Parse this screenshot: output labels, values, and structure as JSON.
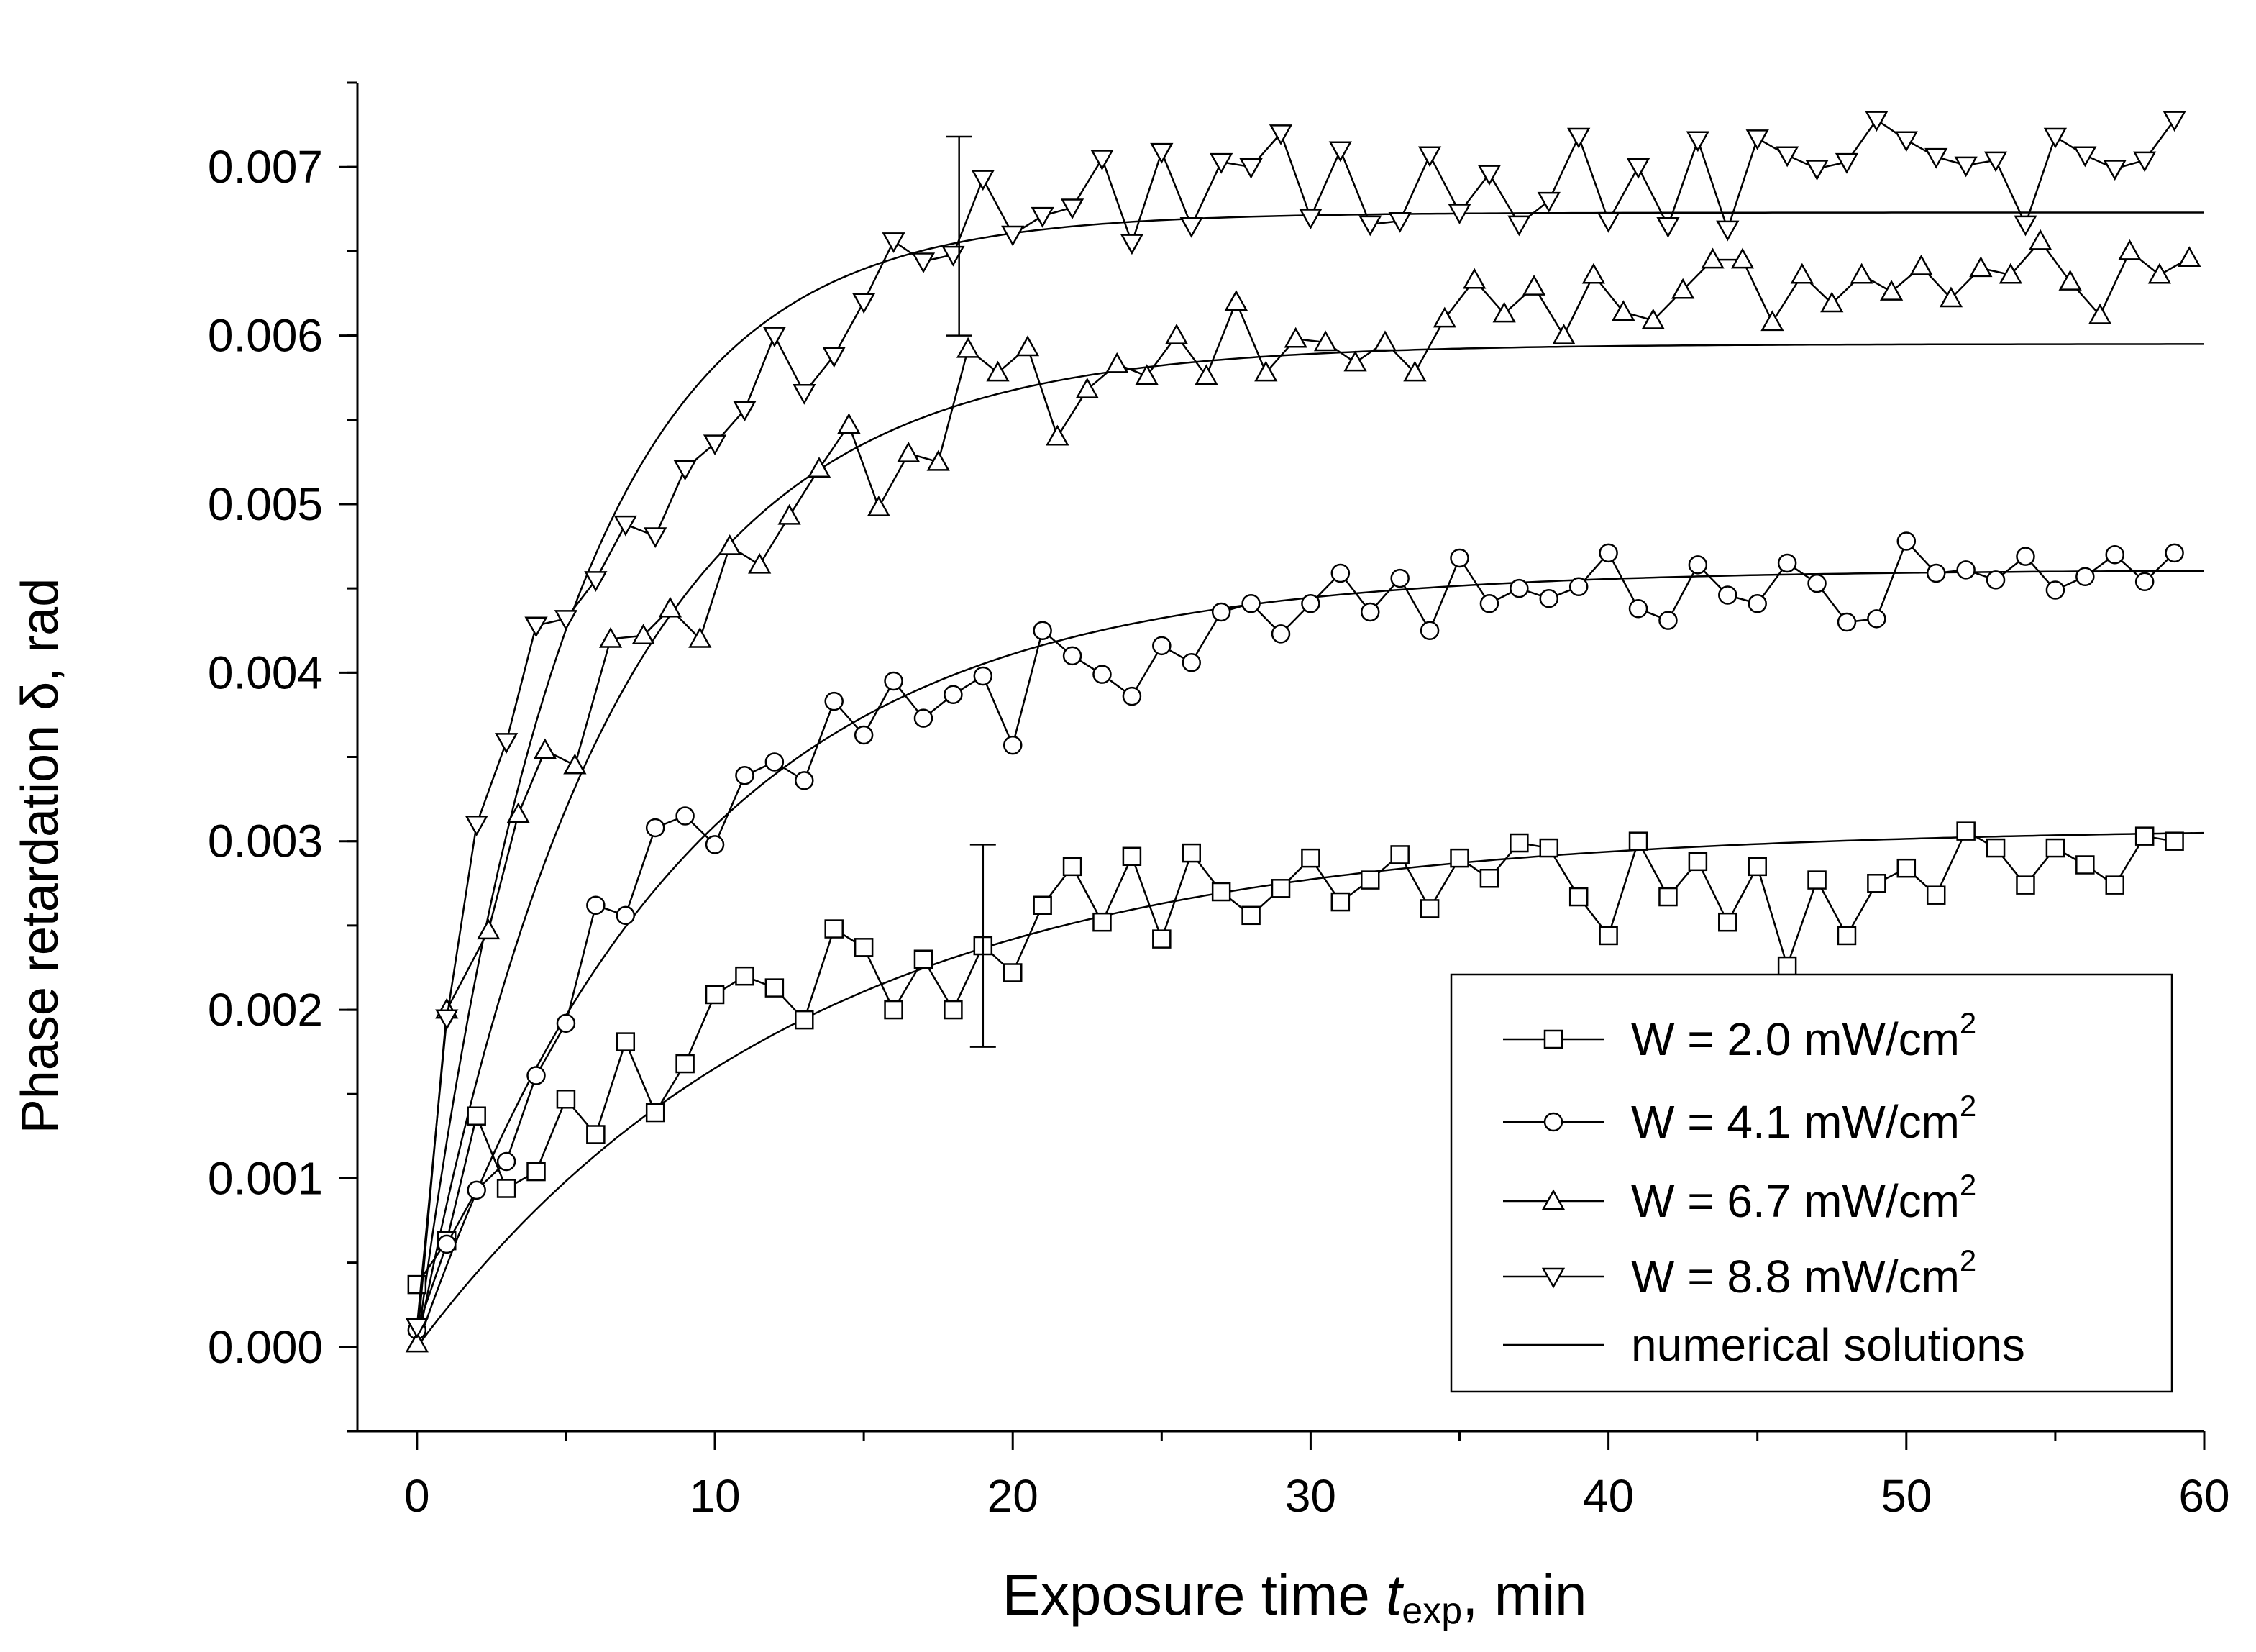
{
  "chart_data": {
    "type": "line",
    "title": "",
    "xlabel_main": "Exposure time ",
    "xlabel_var": "t",
    "xlabel_sub": "exp",
    "xlabel_unit": ", min",
    "ylabel": "Phase retardation δ, rad",
    "xlim": [
      -2,
      60
    ],
    "ylim": [
      -0.0005,
      0.0075
    ],
    "x_ticks": [
      0,
      10,
      20,
      30,
      40,
      50,
      60
    ],
    "x_tick_labels": [
      "0",
      "10",
      "20",
      "30",
      "40",
      "50",
      "60"
    ],
    "y_ticks": [
      0.0,
      0.001,
      0.002,
      0.003,
      0.004,
      0.005,
      0.006,
      0.007
    ],
    "y_tick_labels": [
      "0.000",
      "0.001",
      "0.002",
      "0.003",
      "0.004",
      "0.005",
      "0.006",
      "0.007"
    ],
    "grid": false,
    "legend_position": "bottom-right",
    "series": [
      {
        "name": "W = 2.0 mW/cm",
        "sup": "2",
        "marker": "square",
        "x": [
          0,
          1,
          2,
          3,
          4,
          5,
          6,
          7,
          8,
          9,
          10,
          11,
          12,
          13,
          14,
          15,
          16,
          17,
          18,
          19,
          20,
          21,
          22,
          23,
          24,
          25,
          26,
          27,
          28,
          29,
          30,
          31,
          32,
          33,
          34,
          35,
          36,
          37,
          38,
          39,
          40,
          41,
          42,
          43,
          44,
          45,
          46,
          47,
          48,
          49,
          50,
          51,
          52,
          53,
          54,
          55,
          56,
          57,
          58,
          59
        ],
        "y": [
          0.00037,
          0.00063,
          0.00137,
          0.00094,
          0.00104,
          0.00147,
          0.00126,
          0.00181,
          0.00139,
          0.00168,
          0.00209,
          0.0022,
          0.00213,
          0.00194,
          0.00248,
          0.00237,
          0.002,
          0.0023,
          0.002,
          0.00238,
          0.00222,
          0.00262,
          0.00285,
          0.00252,
          0.00291,
          0.00242,
          0.00293,
          0.0027,
          0.00256,
          0.00272,
          0.0029,
          0.00264,
          0.00277,
          0.00292,
          0.0026,
          0.0029,
          0.00278,
          0.00299,
          0.00296,
          0.00267,
          0.00244,
          0.003,
          0.00267,
          0.00288,
          0.00252,
          0.00285,
          0.00226,
          0.00277,
          0.00244,
          0.00275,
          0.00284,
          0.00268,
          0.00306,
          0.00296,
          0.00274,
          0.00296,
          0.00286,
          0.00274,
          0.00303,
          0.003
        ]
      },
      {
        "name": "W = 4.1 mW/cm",
        "sup": "2",
        "marker": "circle",
        "x": [
          0,
          1,
          2,
          3,
          4,
          5,
          6,
          7,
          8,
          9,
          10,
          11,
          12,
          13,
          14,
          15,
          16,
          17,
          18,
          19,
          20,
          21,
          22,
          23,
          24,
          25,
          26,
          27,
          28,
          29,
          30,
          31,
          32,
          33,
          34,
          35,
          36,
          37,
          38,
          39,
          40,
          41,
          42,
          43,
          44,
          45,
          46,
          47,
          48,
          49,
          50,
          51,
          52,
          53,
          54,
          55,
          56,
          57,
          58,
          59
        ],
        "y": [
          0.0001,
          0.00061,
          0.00093,
          0.0011,
          0.00161,
          0.00192,
          0.00262,
          0.00256,
          0.00308,
          0.00315,
          0.00298,
          0.00339,
          0.00347,
          0.00336,
          0.00383,
          0.00363,
          0.00395,
          0.00373,
          0.00387,
          0.00398,
          0.00357,
          0.00425,
          0.0041,
          0.00399,
          0.00386,
          0.00416,
          0.00406,
          0.00436,
          0.00441,
          0.00423,
          0.00441,
          0.00459,
          0.00436,
          0.00456,
          0.00425,
          0.00468,
          0.00441,
          0.0045,
          0.00444,
          0.00451,
          0.00471,
          0.00438,
          0.00431,
          0.00464,
          0.00446,
          0.00441,
          0.00465,
          0.00453,
          0.0043,
          0.00432,
          0.00478,
          0.00459,
          0.00461,
          0.00455,
          0.00469,
          0.00449,
          0.00457,
          0.0047,
          0.00454,
          0.00471
        ]
      },
      {
        "name": "W = 6.7 mW/cm",
        "sup": "2",
        "marker": "triangle-up",
        "x": [
          0,
          1,
          2.4,
          3.4,
          4.3,
          5.3,
          6.5,
          7.6,
          8.5,
          9.5,
          10.5,
          11.5,
          12.5,
          13.5,
          14.5,
          15.5,
          16.5,
          17.5,
          18.5,
          19.5,
          20.5,
          21.5,
          22.5,
          23.5,
          24.5,
          25.5,
          26.5,
          27.5,
          28.5,
          29.5,
          30.5,
          31.5,
          32.5,
          33.5,
          34.5,
          35.5,
          36.5,
          37.5,
          38.5,
          39.5,
          40.5,
          41.5,
          42.5,
          43.5,
          44.5,
          45.5,
          46.5,
          47.5,
          48.5,
          49.5,
          50.5,
          51.5,
          52.5,
          53.5,
          54.5,
          55.5,
          56.5,
          57.5,
          58.5,
          59.5
        ],
        "y": [
          2e-05,
          0.002,
          0.00247,
          0.00316,
          0.00354,
          0.00345,
          0.0042,
          0.00422,
          0.00438,
          0.0042,
          0.00475,
          0.00464,
          0.00493,
          0.00521,
          0.00547,
          0.00498,
          0.0053,
          0.00525,
          0.00592,
          0.00578,
          0.00593,
          0.0054,
          0.00568,
          0.00583,
          0.00576,
          0.006,
          0.00576,
          0.0062,
          0.00578,
          0.00598,
          0.00596,
          0.00584,
          0.00596,
          0.00578,
          0.0061,
          0.00633,
          0.00613,
          0.00629,
          0.006,
          0.00636,
          0.00614,
          0.00609,
          0.00627,
          0.00645,
          0.00645,
          0.00608,
          0.00636,
          0.00619,
          0.00636,
          0.00626,
          0.00641,
          0.00622,
          0.0064,
          0.00636,
          0.00656,
          0.00632,
          0.00612,
          0.0065,
          0.00636,
          0.00646
        ]
      },
      {
        "name": "W = 8.8 mW/cm",
        "sup": "2",
        "marker": "triangle-down",
        "x": [
          0,
          1,
          2,
          3,
          4,
          5,
          6,
          7,
          8,
          9,
          10,
          11,
          12,
          13,
          14,
          15,
          16,
          17,
          18,
          19,
          20,
          21,
          22,
          23,
          24,
          25,
          26,
          27,
          28,
          29,
          30,
          31,
          32,
          33,
          34,
          35,
          36,
          37,
          38,
          39,
          40,
          41,
          42,
          43,
          44,
          45,
          46,
          47,
          48,
          49,
          50,
          51,
          52,
          53,
          54,
          55,
          56,
          57,
          58,
          59
        ],
        "y": [
          0.00012,
          0.00195,
          0.0031,
          0.00359,
          0.00428,
          0.00432,
          0.00455,
          0.00488,
          0.00481,
          0.00521,
          0.00536,
          0.00556,
          0.006,
          0.00566,
          0.00588,
          0.0062,
          0.00656,
          0.00644,
          0.00648,
          0.00693,
          0.0066,
          0.00671,
          0.00676,
          0.00705,
          0.00655,
          0.00709,
          0.00665,
          0.00703,
          0.007,
          0.0072,
          0.0067,
          0.0071,
          0.00666,
          0.00668,
          0.00707,
          0.00673,
          0.00696,
          0.00666,
          0.0068,
          0.00718,
          0.00668,
          0.007,
          0.00665,
          0.00716,
          0.00663,
          0.00717,
          0.00707,
          0.00699,
          0.00703,
          0.00728,
          0.00716,
          0.00706,
          0.00701,
          0.00704,
          0.00666,
          0.00718,
          0.00707,
          0.00699,
          0.00704,
          0.00728
        ]
      }
    ],
    "fit_curves": [
      {
        "series": "W = 2.0 mW/cm2",
        "model": "y = A(1 - exp(-t/tau))",
        "A": 0.00308,
        "tau": 13.0
      },
      {
        "series": "W = 4.1 mW/cm2",
        "model": "y = A(1 - exp(-t/tau))",
        "A": 0.00461,
        "tau": 9.0
      },
      {
        "series": "W = 6.7 mW/cm2",
        "model": "y = A(1 - exp(-t/tau))",
        "A": 0.00595,
        "tau": 6.5
      },
      {
        "series": "W = 8.8 mW/cm2",
        "model": "y = A(1 - exp(-t/tau))",
        "A": 0.00673,
        "tau": 5.0
      }
    ],
    "fit_label": "numerical solutions",
    "error_bars": [
      {
        "x": 18.2,
        "y": 0.00658,
        "low": 0.006,
        "high": 0.00718
      },
      {
        "x": 19.0,
        "y": 0.00238,
        "low": 0.00178,
        "high": 0.00298
      }
    ]
  }
}
